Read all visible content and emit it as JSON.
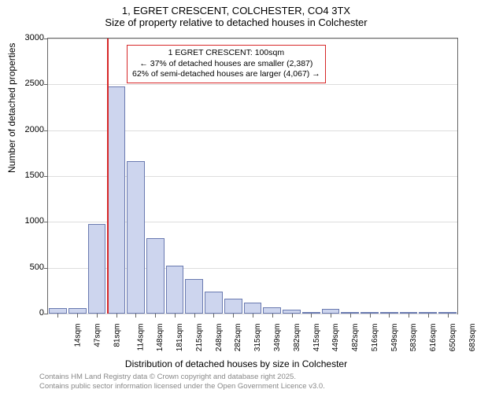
{
  "title_main": "1, EGRET CRESCENT, COLCHESTER, CO4 3TX",
  "title_sub": "Size of property relative to detached houses in Colchester",
  "chart": {
    "type": "histogram",
    "bar_fill": "#cdd5ee",
    "bar_stroke": "#6a7ab0",
    "background": "#ffffff",
    "grid_color": "#dddddd",
    "border_color": "#666666",
    "ylim": [
      0,
      3000
    ],
    "yticks": [
      0,
      500,
      1000,
      1500,
      2000,
      2500,
      3000
    ],
    "x_categories": [
      "14sqm",
      "47sqm",
      "81sqm",
      "114sqm",
      "148sqm",
      "181sqm",
      "215sqm",
      "248sqm",
      "282sqm",
      "315sqm",
      "349sqm",
      "382sqm",
      "415sqm",
      "449sqm",
      "482sqm",
      "516sqm",
      "549sqm",
      "583sqm",
      "616sqm",
      "650sqm",
      "683sqm"
    ],
    "values": [
      60,
      60,
      980,
      2480,
      1660,
      820,
      520,
      380,
      240,
      160,
      120,
      70,
      40,
      10,
      50,
      20,
      15,
      10,
      10,
      5,
      5
    ],
    "marker": {
      "position_index": 3,
      "fraction_in_bin": 0.0,
      "color": "#d62728"
    },
    "annotation": {
      "line1": "1 EGRET CRESCENT: 100sqm",
      "line2": "← 37% of detached houses are smaller (2,387)",
      "line3": "62% of semi-detached houses are larger (4,067) →",
      "border_color": "#d62728",
      "background": "#ffffff",
      "fontsize": 10.5
    },
    "ylabel": "Number of detached properties",
    "xlabel": "Distribution of detached houses by size in Colchester",
    "label_fontsize": 12,
    "tick_fontsize": 11
  },
  "footer": {
    "line1": "Contains HM Land Registry data © Crown copyright and database right 2025.",
    "line2": "Contains public sector information licensed under the Open Government Licence v3.0.",
    "color": "#888888",
    "fontsize": 9.5
  }
}
